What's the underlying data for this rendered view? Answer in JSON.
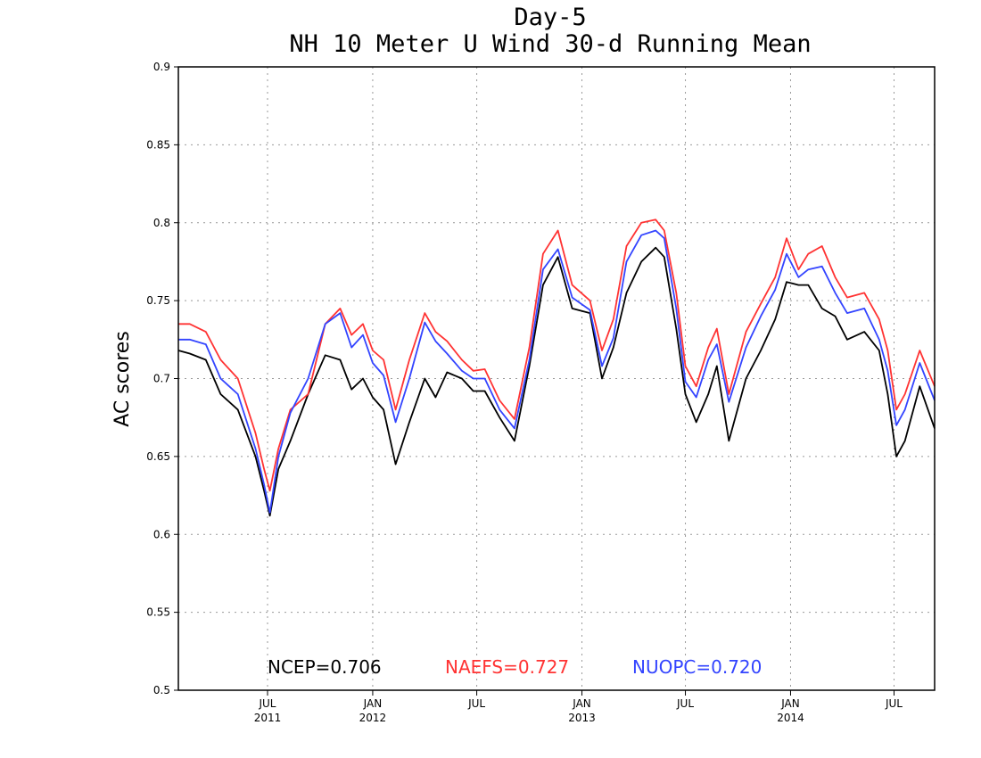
{
  "chart_data": {
    "type": "line",
    "title": "Day-5",
    "subtitle": "NH 10 Meter U Wind 30-d Running Mean",
    "ylabel": "AC scores",
    "ylim": [
      0.5,
      0.9
    ],
    "xlim": [
      "2011-01-26",
      "2014-09-10"
    ],
    "yticks": [
      0.5,
      0.55,
      0.6,
      0.65,
      0.7,
      0.75,
      0.8,
      0.85,
      0.9
    ],
    "ytick_labels": [
      "0.5",
      "0.55",
      "0.6",
      "0.65",
      "0.7",
      "0.75",
      "0.8",
      "0.85",
      "0.9"
    ],
    "xticks": [
      {
        "date": "2011-07-01",
        "label": "JUL",
        "year": "2011"
      },
      {
        "date": "2012-01-01",
        "label": "JAN",
        "year": "2012"
      },
      {
        "date": "2012-07-01",
        "label": "JUL",
        "year": ""
      },
      {
        "date": "2013-01-01",
        "label": "JAN",
        "year": "2013"
      },
      {
        "date": "2013-07-01",
        "label": "JUL",
        "year": ""
      },
      {
        "date": "2014-01-01",
        "label": "JAN",
        "year": "2014"
      },
      {
        "date": "2014-07-01",
        "label": "JUL",
        "year": ""
      }
    ],
    "grid": true,
    "legend_position": "bottom",
    "series": [
      {
        "name": "NCEP",
        "label": "NCEP=0.706",
        "color": "#000000",
        "x": [
          "2011-01-26",
          "2011-02-15",
          "2011-03-15",
          "2011-04-10",
          "2011-05-10",
          "2011-06-10",
          "2011-06-25",
          "2011-07-05",
          "2011-07-20",
          "2011-08-10",
          "2011-09-10",
          "2011-10-10",
          "2011-11-05",
          "2011-11-25",
          "2011-12-15",
          "2012-01-01",
          "2012-01-20",
          "2012-02-10",
          "2012-03-05",
          "2012-04-01",
          "2012-04-20",
          "2012-05-10",
          "2012-06-05",
          "2012-06-25",
          "2012-07-15",
          "2012-08-10",
          "2012-09-05",
          "2012-10-01",
          "2012-10-25",
          "2012-11-20",
          "2012-12-15",
          "2013-01-15",
          "2013-02-05",
          "2013-02-25",
          "2013-03-20",
          "2013-04-15",
          "2013-05-10",
          "2013-05-25",
          "2013-06-15",
          "2013-07-01",
          "2013-07-20",
          "2013-08-10",
          "2013-08-25",
          "2013-09-15",
          "2013-10-15",
          "2013-11-10",
          "2013-12-05",
          "2013-12-25",
          "2014-01-15",
          "2014-02-01",
          "2014-02-25",
          "2014-03-20",
          "2014-04-10",
          "2014-05-10",
          "2014-06-05",
          "2014-06-20",
          "2014-07-05",
          "2014-07-20",
          "2014-08-15",
          "2014-09-10"
        ],
        "y": [
          0.718,
          0.716,
          0.712,
          0.69,
          0.68,
          0.65,
          0.628,
          0.612,
          0.642,
          0.66,
          0.69,
          0.715,
          0.712,
          0.693,
          0.7,
          0.688,
          0.68,
          0.645,
          0.672,
          0.7,
          0.688,
          0.704,
          0.7,
          0.692,
          0.692,
          0.675,
          0.66,
          0.708,
          0.76,
          0.778,
          0.745,
          0.742,
          0.7,
          0.72,
          0.755,
          0.775,
          0.784,
          0.778,
          0.732,
          0.69,
          0.672,
          0.69,
          0.708,
          0.66,
          0.7,
          0.718,
          0.738,
          0.762,
          0.76,
          0.76,
          0.745,
          0.74,
          0.725,
          0.73,
          0.718,
          0.69,
          0.65,
          0.66,
          0.695,
          0.668
        ]
      },
      {
        "name": "NAEFS",
        "label": "NAEFS=0.727",
        "color": "#ff3333",
        "x": [
          "2011-01-26",
          "2011-02-15",
          "2011-03-15",
          "2011-04-10",
          "2011-05-10",
          "2011-06-10",
          "2011-06-25",
          "2011-07-05",
          "2011-07-20",
          "2011-08-10",
          "2011-09-10",
          "2011-10-10",
          "2011-11-05",
          "2011-11-25",
          "2011-12-15",
          "2012-01-01",
          "2012-01-20",
          "2012-02-10",
          "2012-03-05",
          "2012-04-01",
          "2012-04-20",
          "2012-05-10",
          "2012-06-05",
          "2012-06-25",
          "2012-07-15",
          "2012-08-10",
          "2012-09-05",
          "2012-10-01",
          "2012-10-25",
          "2012-11-20",
          "2012-12-15",
          "2013-01-15",
          "2013-02-05",
          "2013-02-25",
          "2013-03-20",
          "2013-04-15",
          "2013-05-10",
          "2013-05-25",
          "2013-06-15",
          "2013-07-01",
          "2013-07-20",
          "2013-08-10",
          "2013-08-25",
          "2013-09-15",
          "2013-10-15",
          "2013-11-10",
          "2013-12-05",
          "2013-12-25",
          "2014-01-15",
          "2014-02-01",
          "2014-02-25",
          "2014-03-20",
          "2014-04-10",
          "2014-05-10",
          "2014-06-05",
          "2014-06-20",
          "2014-07-05",
          "2014-07-20",
          "2014-08-15",
          "2014-09-10"
        ],
        "y": [
          0.735,
          0.735,
          0.73,
          0.712,
          0.7,
          0.665,
          0.642,
          0.628,
          0.655,
          0.68,
          0.69,
          0.735,
          0.745,
          0.728,
          0.735,
          0.718,
          0.712,
          0.68,
          0.712,
          0.742,
          0.73,
          0.724,
          0.712,
          0.705,
          0.706,
          0.686,
          0.674,
          0.72,
          0.78,
          0.795,
          0.76,
          0.75,
          0.718,
          0.738,
          0.785,
          0.8,
          0.802,
          0.795,
          0.755,
          0.708,
          0.695,
          0.72,
          0.732,
          0.69,
          0.73,
          0.748,
          0.765,
          0.79,
          0.77,
          0.78,
          0.785,
          0.765,
          0.752,
          0.755,
          0.738,
          0.718,
          0.68,
          0.69,
          0.718,
          0.695
        ]
      },
      {
        "name": "NUOPC",
        "label": "NUOPC=0.720",
        "color": "#3344ff",
        "x": [
          "2011-01-26",
          "2011-02-15",
          "2011-03-15",
          "2011-04-10",
          "2011-05-10",
          "2011-06-10",
          "2011-06-25",
          "2011-07-05",
          "2011-07-20",
          "2011-08-10",
          "2011-09-10",
          "2011-10-10",
          "2011-11-05",
          "2011-11-25",
          "2011-12-15",
          "2012-01-01",
          "2012-01-20",
          "2012-02-10",
          "2012-03-05",
          "2012-04-01",
          "2012-04-20",
          "2012-05-10",
          "2012-06-05",
          "2012-06-25",
          "2012-07-15",
          "2012-08-10",
          "2012-09-05",
          "2012-10-01",
          "2012-10-25",
          "2012-11-20",
          "2012-12-15",
          "2013-01-15",
          "2013-02-05",
          "2013-02-25",
          "2013-03-20",
          "2013-04-15",
          "2013-05-10",
          "2013-05-25",
          "2013-06-15",
          "2013-07-01",
          "2013-07-20",
          "2013-08-10",
          "2013-08-25",
          "2013-09-15",
          "2013-10-15",
          "2013-11-10",
          "2013-12-05",
          "2013-12-25",
          "2014-01-15",
          "2014-02-01",
          "2014-02-25",
          "2014-03-20",
          "2014-04-10",
          "2014-05-10",
          "2014-06-05",
          "2014-06-20",
          "2014-07-05",
          "2014-07-20",
          "2014-08-15",
          "2014-09-10"
        ],
        "y": [
          0.725,
          0.725,
          0.722,
          0.7,
          0.69,
          0.655,
          0.632,
          0.614,
          0.65,
          0.678,
          0.7,
          0.735,
          0.742,
          0.72,
          0.728,
          0.71,
          0.702,
          0.672,
          0.7,
          0.736,
          0.724,
          0.716,
          0.705,
          0.7,
          0.7,
          0.68,
          0.668,
          0.712,
          0.77,
          0.783,
          0.752,
          0.744,
          0.708,
          0.726,
          0.775,
          0.792,
          0.795,
          0.79,
          0.745,
          0.698,
          0.688,
          0.712,
          0.722,
          0.685,
          0.72,
          0.74,
          0.757,
          0.78,
          0.765,
          0.77,
          0.772,
          0.755,
          0.742,
          0.745,
          0.725,
          0.705,
          0.67,
          0.68,
          0.71,
          0.686
        ]
      }
    ]
  }
}
